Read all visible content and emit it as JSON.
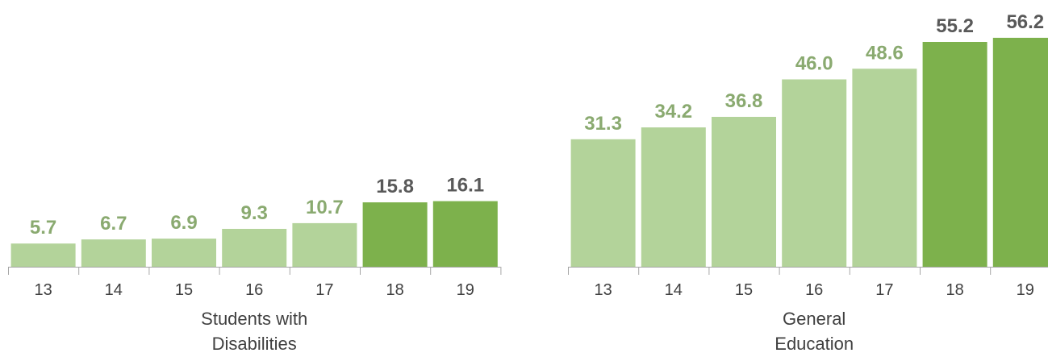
{
  "chart_data": {
    "type": "bar",
    "title": "",
    "xlabel": "",
    "ylabel": "",
    "ylim": [
      0,
      57
    ],
    "grid": false,
    "legend": "none",
    "colors": {
      "earlier_years": "#b3d39a",
      "recent_years": "#7db14c",
      "earlier_label": "#8aaa70",
      "recent_label": "#595959",
      "axis": "#a6a6a6"
    },
    "groups": [
      {
        "name": "Students with Disabilities",
        "name_lines": [
          "Students with",
          "Disabilities"
        ],
        "categories": [
          "13",
          "14",
          "15",
          "16",
          "17",
          "18",
          "19"
        ],
        "values": [
          5.7,
          6.7,
          6.9,
          9.3,
          10.7,
          15.8,
          16.1
        ],
        "labels": [
          "5.7",
          "6.7",
          "6.9",
          "9.3",
          "10.7",
          "15.8",
          "16.1"
        ],
        "highlight": [
          false,
          false,
          false,
          false,
          false,
          true,
          true
        ]
      },
      {
        "name": "General Education",
        "name_lines": [
          "General",
          "Education"
        ],
        "categories": [
          "13",
          "14",
          "15",
          "16",
          "17",
          "18",
          "19"
        ],
        "values": [
          31.3,
          34.2,
          36.8,
          46.0,
          48.6,
          55.2,
          56.2
        ],
        "labels": [
          "31.3",
          "34.2",
          "36.8",
          "46.0",
          "48.6",
          "55.2",
          "56.2"
        ],
        "highlight": [
          false,
          false,
          false,
          false,
          false,
          true,
          true
        ]
      }
    ]
  }
}
